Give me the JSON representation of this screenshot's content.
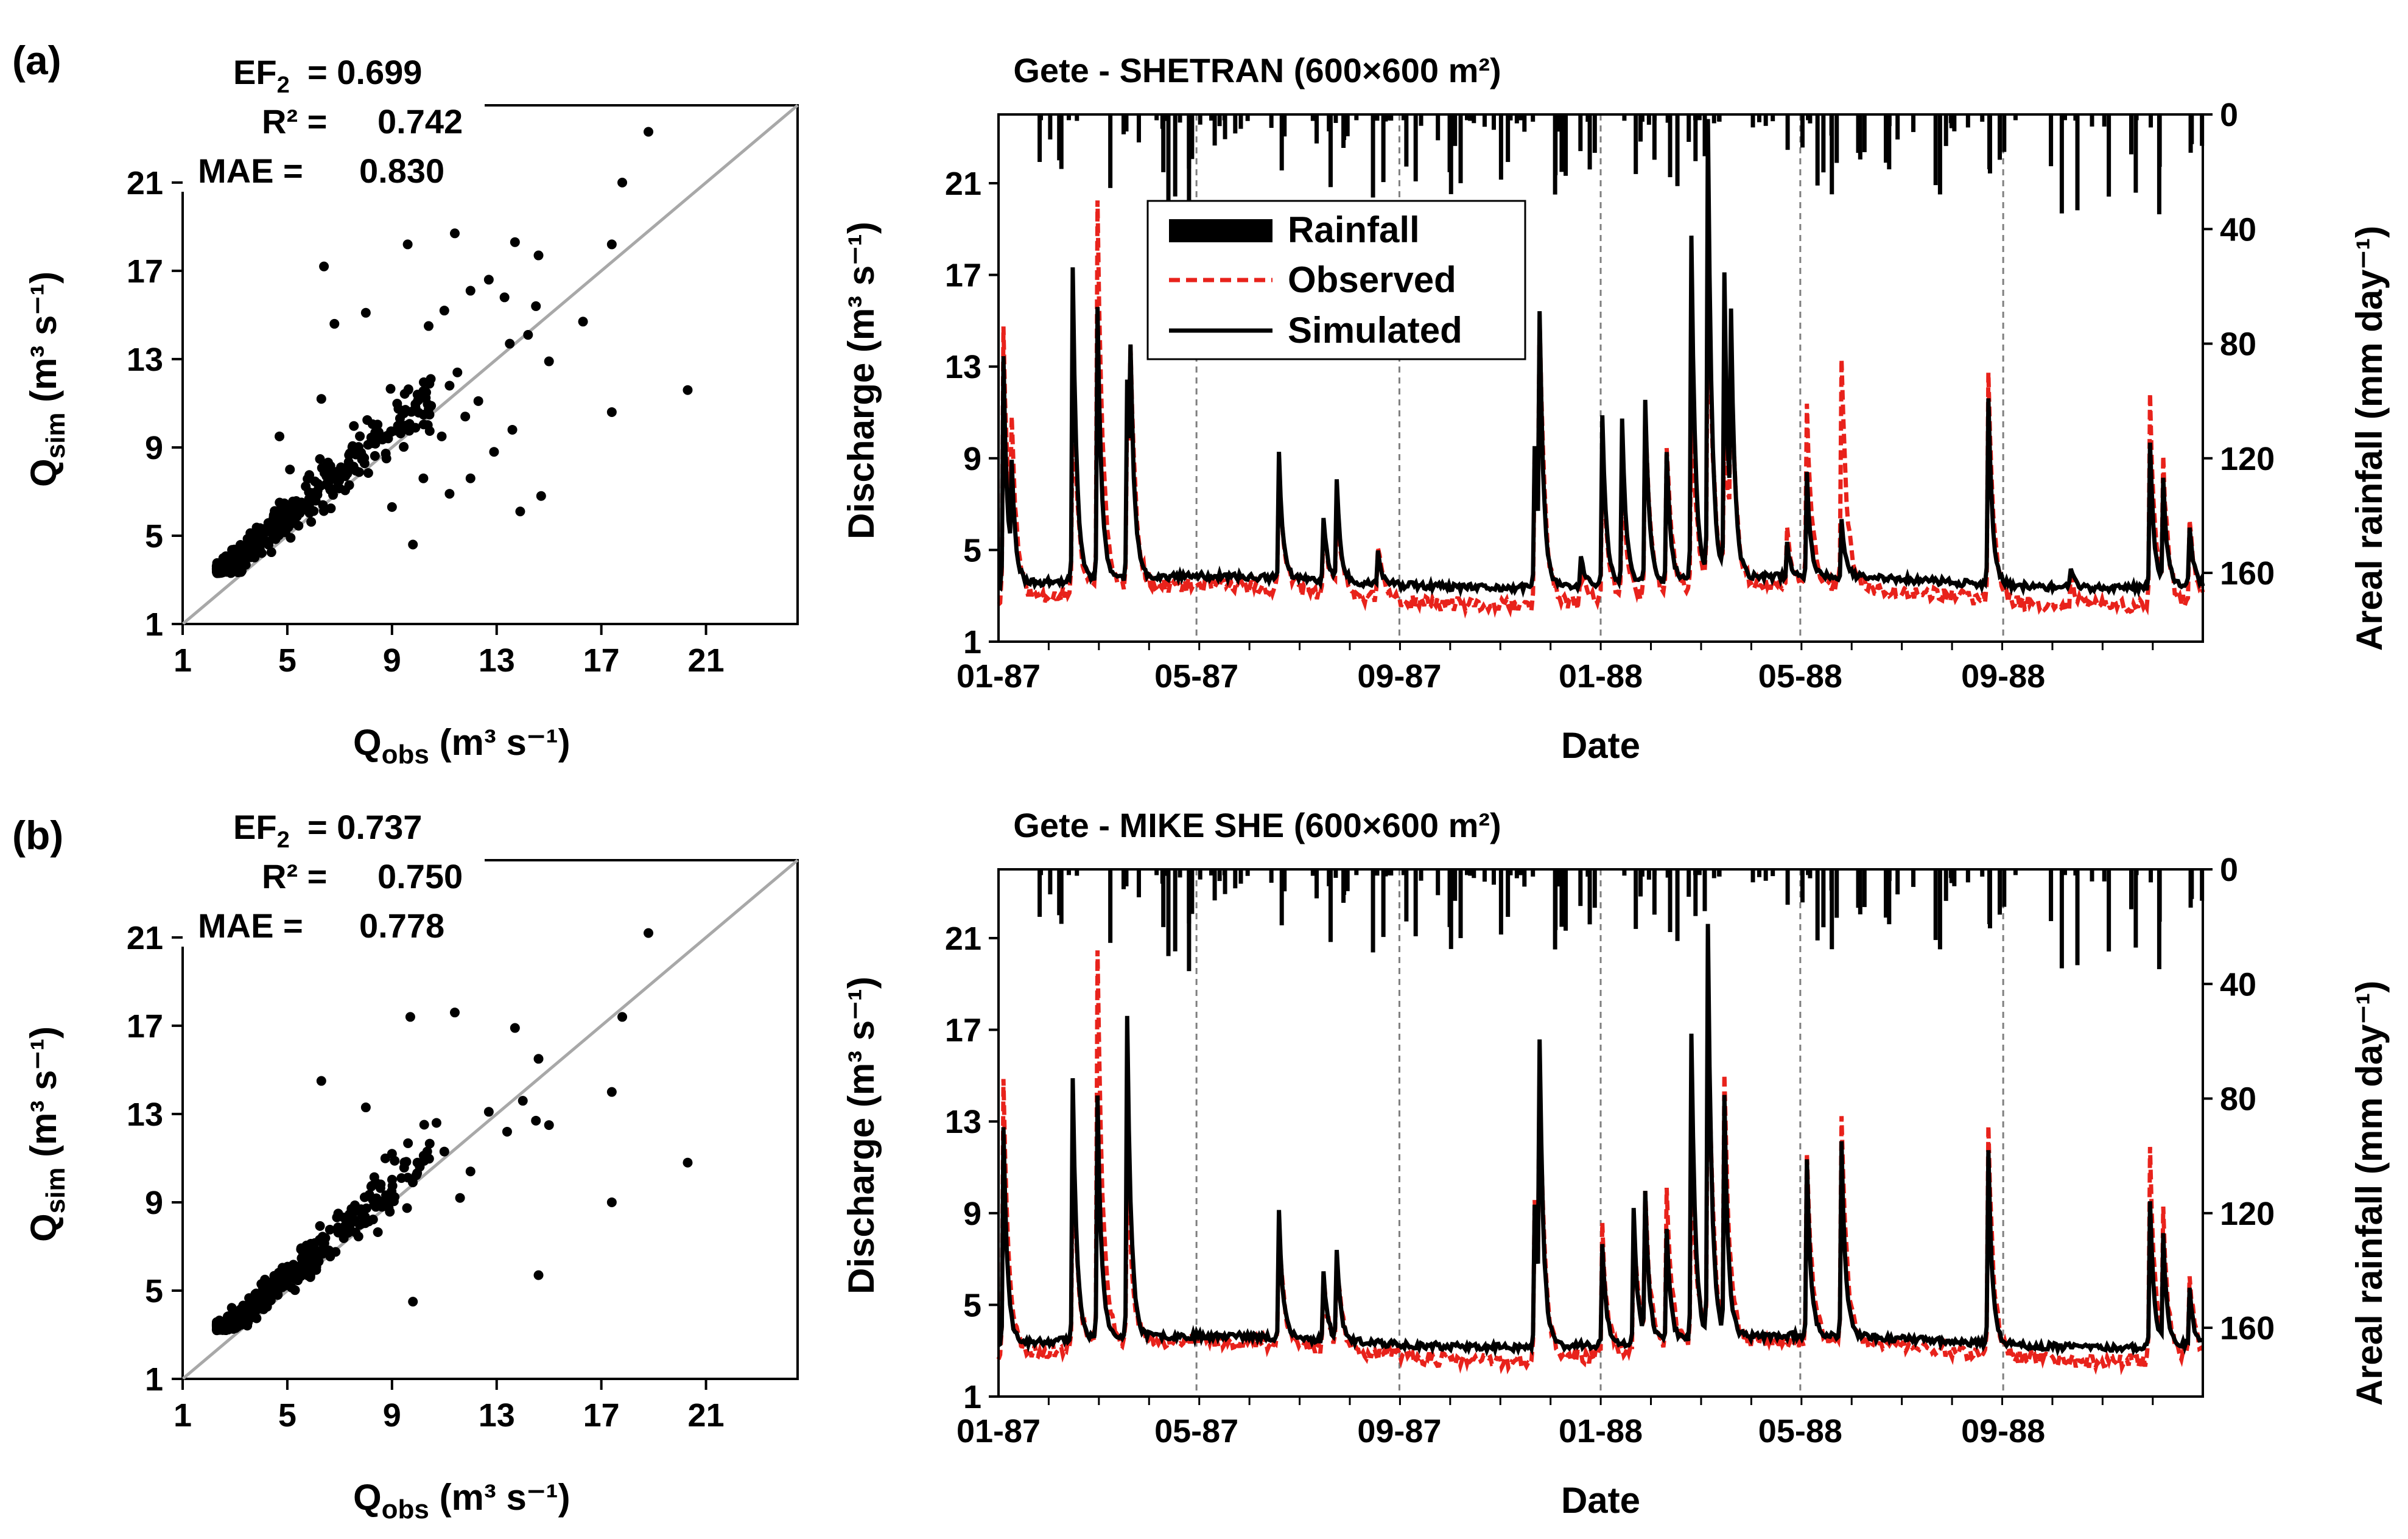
{
  "colors": {
    "observed": "#e8221b",
    "simulated": "#000000",
    "rainfall": "#000000",
    "one_to_one": "#a8a8a8",
    "month_grid": "#7f7f7f"
  },
  "legend": {
    "rainfall": "Rainfall",
    "observed": "Observed",
    "simulated": "Simulated"
  },
  "chart_data": [
    {
      "id": "a-scatter",
      "type": "scatter",
      "panel_label": "(a)",
      "xlabel_main": "Q",
      "xlabel_sub": "obs",
      "xlabel_unit": " (m³ s⁻¹)",
      "ylabel_main": "Q",
      "ylabel_sub": "sim",
      "ylabel_unit": " (m³ s⁻¹)",
      "xlim": [
        1,
        24.5
      ],
      "ylim": [
        1,
        24.5
      ],
      "xticks": [
        "1",
        "5",
        "9",
        "13",
        "17",
        "21"
      ],
      "yticks": [
        "1",
        "5",
        "9",
        "13",
        "17",
        "21"
      ],
      "stats": {
        "ef2_label": "EF",
        "ef2_sub": "2",
        "ef2_value": "=  0.699",
        "r2_label": "R² =",
        "r2_value": "0.742",
        "mae_label": "MAE =",
        "mae_value": "0.830"
      },
      "outliers": [
        [
          18.8,
          23.3
        ],
        [
          17.8,
          21.0
        ],
        [
          6.4,
          17.2
        ],
        [
          9.6,
          18.2
        ],
        [
          11.4,
          18.7
        ],
        [
          13.7,
          18.3
        ],
        [
          14.6,
          17.7
        ],
        [
          17.4,
          18.2
        ],
        [
          20.3,
          11.6
        ],
        [
          17.4,
          10.6
        ],
        [
          15.0,
          12.9
        ],
        [
          14.5,
          15.4
        ],
        [
          14.7,
          6.8
        ],
        [
          13.9,
          6.1
        ],
        [
          12.9,
          8.8
        ],
        [
          10.2,
          7.6
        ],
        [
          11.2,
          6.9
        ],
        [
          9.8,
          4.6
        ],
        [
          8.0,
          15.1
        ],
        [
          12.0,
          16.1
        ],
        [
          13.3,
          15.8
        ],
        [
          12.7,
          16.6
        ],
        [
          11.0,
          15.2
        ],
        [
          10.4,
          14.5
        ],
        [
          14.2,
          14.1
        ],
        [
          13.5,
          13.7
        ],
        [
          11.5,
          12.4
        ],
        [
          11.2,
          11.8
        ],
        [
          12.3,
          11.1
        ],
        [
          11.8,
          10.4
        ],
        [
          13.6,
          9.8
        ],
        [
          10.9,
          9.5
        ],
        [
          6.3,
          11.2
        ],
        [
          9.0,
          6.3
        ],
        [
          4.7,
          9.5
        ],
        [
          5.1,
          8.0
        ],
        [
          12.0,
          7.6
        ],
        [
          9.9,
          10.8
        ],
        [
          16.3,
          14.7
        ],
        [
          6.8,
          14.6
        ]
      ],
      "cloud": {
        "n": 420,
        "seed": 7,
        "x_range": [
          2.3,
          10.5
        ],
        "slope": 1.02,
        "intercept": 0.8,
        "spread": 1.1,
        "ymin": 3.3
      }
    },
    {
      "id": "a-ts",
      "type": "line",
      "title": "Gete - SHETRAN (600×600 m²)",
      "xlabel": "Date",
      "ylabel_unit": "Discharge (m³ s⁻¹)",
      "y2label": "Areal rainfall (mm day⁻¹)",
      "ylim": [
        1,
        24
      ],
      "y2lim": [
        0,
        184
      ],
      "yticks": [
        "1",
        "5",
        "9",
        "13",
        "17",
        "21"
      ],
      "y2ticks": [
        "0",
        "40",
        "80",
        "120",
        "160"
      ],
      "x_day_range": [
        0,
        730
      ],
      "xtick_labels": [
        "01-87",
        "05-87",
        "09-87",
        "01-88",
        "05-88",
        "09-88"
      ],
      "xtick_days": [
        0,
        120,
        243,
        365,
        486,
        609
      ],
      "base_obs": 3.0,
      "base_sim": 3.6,
      "seed": 11,
      "peaks": [
        [
          3,
          15.2,
          13.5
        ],
        [
          8,
          8.5,
          7.8
        ],
        [
          45,
          12.0,
          17.3
        ],
        [
          60,
          20.2,
          15.6
        ],
        [
          78,
          10.8,
          12.3
        ],
        [
          80,
          9.2,
          10.1
        ],
        [
          170,
          8.2,
          9.0
        ],
        [
          197,
          6.1,
          6.4
        ],
        [
          205,
          7.1,
          8.0
        ],
        [
          230,
          5.4,
          5.0
        ],
        [
          325,
          9.8,
          9.8
        ],
        [
          328,
          12.8,
          14.0
        ],
        [
          353,
          4.7,
          5.0
        ],
        [
          366,
          9.5,
          11.0
        ],
        [
          378,
          8.4,
          10.8
        ],
        [
          392,
          11.2,
          11.6
        ],
        [
          405,
          9.5,
          9.2
        ],
        [
          420,
          11.6,
          18.5
        ],
        [
          430,
          17.8,
          23.5
        ],
        [
          440,
          10.2,
          16.5
        ],
        [
          444,
          11.0,
          12.8
        ],
        [
          478,
          5.5,
          5.0
        ],
        [
          490,
          10.6,
          8.0
        ],
        [
          511,
          13.1,
          6.2
        ],
        [
          600,
          12.9,
          11.8
        ],
        [
          650,
          4.5,
          4.4
        ],
        [
          698,
          12.0,
          10.0
        ],
        [
          706,
          8.6,
          8.2
        ],
        [
          722,
          6.8,
          6.2
        ]
      ],
      "rain": {
        "count": 150,
        "seed": 3,
        "max": 34
      }
    },
    {
      "id": "b-scatter",
      "type": "scatter",
      "panel_label": "(b)",
      "xlabel_main": "Q",
      "xlabel_sub": "obs",
      "xlabel_unit": " (m³ s⁻¹)",
      "ylabel_main": "Q",
      "ylabel_sub": "sim",
      "ylabel_unit": " (m³ s⁻¹)",
      "xlim": [
        1,
        24.5
      ],
      "ylim": [
        1,
        24.5
      ],
      "xticks": [
        "1",
        "5",
        "9",
        "13",
        "17",
        "21"
      ],
      "yticks": [
        "1",
        "5",
        "9",
        "13",
        "17",
        "21"
      ],
      "stats": {
        "ef2_label": "EF",
        "ef2_sub": "2",
        "ef2_value": "=  0.737",
        "r2_label": "R² =",
        "r2_value": "0.750",
        "mae_label": "MAE =",
        "mae_value": "0.778"
      },
      "outliers": [
        [
          18.8,
          21.2
        ],
        [
          17.8,
          17.4
        ],
        [
          9.7,
          17.4
        ],
        [
          11.4,
          17.6
        ],
        [
          13.7,
          16.9
        ],
        [
          14.6,
          15.5
        ],
        [
          17.4,
          14.0
        ],
        [
          17.4,
          9.0
        ],
        [
          20.3,
          10.8
        ],
        [
          15.0,
          12.5
        ],
        [
          14.6,
          5.7
        ],
        [
          6.3,
          14.5
        ],
        [
          8.0,
          13.3
        ],
        [
          10.7,
          12.6
        ],
        [
          12.0,
          10.4
        ],
        [
          12.7,
          13.1
        ],
        [
          13.4,
          12.2
        ],
        [
          14.5,
          12.7
        ],
        [
          14.0,
          13.6
        ],
        [
          11.6,
          9.2
        ],
        [
          9.8,
          4.5
        ],
        [
          9.0,
          11.2
        ],
        [
          11.0,
          11.3
        ]
      ],
      "cloud": {
        "n": 420,
        "seed": 19,
        "x_range": [
          2.3,
          10.5
        ],
        "slope": 1.0,
        "intercept": 0.6,
        "spread": 1.0,
        "ymin": 3.2
      }
    },
    {
      "id": "b-ts",
      "type": "line",
      "title": "Gete - MIKE SHE (600×600 m²)",
      "xlabel": "Date",
      "ylabel_unit": "Discharge (m³ s⁻¹)",
      "y2label": "Areal rainfall (mm day⁻¹)",
      "ylim": [
        1,
        24
      ],
      "y2lim": [
        0,
        184
      ],
      "yticks": [
        "1",
        "5",
        "9",
        "13",
        "17",
        "21"
      ],
      "y2ticks": [
        "0",
        "40",
        "80",
        "120",
        "160"
      ],
      "x_day_range": [
        0,
        730
      ],
      "xtick_labels": [
        "01-87",
        "05-87",
        "09-87",
        "01-88",
        "05-88",
        "09-88"
      ],
      "xtick_days": [
        0,
        120,
        243,
        365,
        486,
        609
      ],
      "base_obs": 3.0,
      "base_sim": 3.4,
      "seed": 23,
      "peaks": [
        [
          3,
          15.2,
          12.8
        ],
        [
          45,
          12.0,
          14.7
        ],
        [
          60,
          20.2,
          14.0
        ],
        [
          78,
          10.8,
          17.3
        ],
        [
          170,
          8.2,
          8.9
        ],
        [
          197,
          6.1,
          6.5
        ],
        [
          205,
          7.1,
          7.4
        ],
        [
          325,
          9.8,
          9.5
        ],
        [
          328,
          12.8,
          15.0
        ],
        [
          366,
          8.6,
          7.8
        ],
        [
          385,
          8.7,
          9.2
        ],
        [
          392,
          9.5,
          9.8
        ],
        [
          405,
          10.2,
          8.2
        ],
        [
          420,
          11.6,
          16.8
        ],
        [
          430,
          17.8,
          21.2
        ],
        [
          440,
          14.0,
          13.6
        ],
        [
          490,
          11.0,
          11.2
        ],
        [
          511,
          13.0,
          11.8
        ],
        [
          600,
          12.9,
          11.7
        ],
        [
          698,
          12.2,
          9.8
        ],
        [
          706,
          8.6,
          8.0
        ],
        [
          722,
          6.6,
          5.8
        ]
      ],
      "rain": {
        "count": 150,
        "seed": 3,
        "max": 34
      }
    }
  ]
}
